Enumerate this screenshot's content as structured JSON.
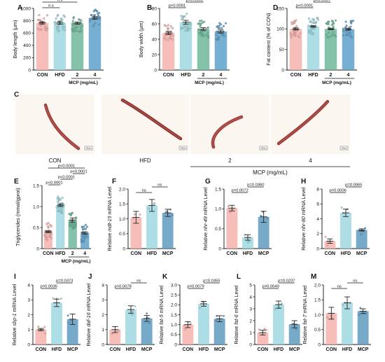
{
  "figure": {
    "colors": {
      "CON": "#f6b1ad",
      "HFD": "#9fd8e1",
      "MCP2": "#6fb99b",
      "MCP4": "#5ea1c9",
      "MCP": "#5f9ac0"
    },
    "photos": {
      "label": "C",
      "panels": [
        {
          "name": "CON",
          "worm_color": "#9b3d3a"
        },
        {
          "name": "HFD",
          "worm_color": "#8d3430"
        },
        {
          "name": "2",
          "worm_color": "#9f3f3b"
        },
        {
          "name": "4",
          "worm_color": "#9a3a36"
        }
      ],
      "group_label": "MCP (mg/mL)",
      "scalebar_text": "200μm"
    }
  },
  "chart_data": [
    {
      "panel": "A",
      "type": "bar",
      "categories": [
        "CON",
        "HFD",
        "2",
        "4"
      ],
      "values": [
        765,
        765,
        760,
        845
      ],
      "errors": [
        18,
        22,
        18,
        22
      ],
      "ylabel": "Body length (μm)",
      "ylim": [
        0,
        1000
      ],
      "yticks": [
        0,
        200,
        400,
        600,
        800,
        1000
      ],
      "group_label": "MCP (mg/mL)",
      "comparisons": [
        {
          "from": 0,
          "to": 1,
          "label": "n.s"
        },
        {
          "from": 0,
          "to": 2,
          "label": "n.s"
        },
        {
          "from": 0,
          "to": 3,
          "label": "p<0.0001"
        },
        {
          "from": 1,
          "to": 3,
          "label": "p<0.0001"
        }
      ]
    },
    {
      "panel": "B",
      "type": "bar",
      "categories": [
        "CON",
        "HFD",
        "2",
        "4"
      ],
      "values": [
        48,
        62,
        53,
        50
      ],
      "errors": [
        2,
        2.5,
        2,
        2
      ],
      "ylabel": "Body width (μm)",
      "ylim": [
        0,
        80
      ],
      "yticks": [
        0,
        20,
        40,
        60,
        80
      ],
      "group_label": "MCP (mg/mL)",
      "comparisons": [
        {
          "from": 0,
          "to": 1,
          "label": "p<0.0001"
        },
        {
          "from": 1,
          "to": 2,
          "label": "p<0.0001"
        },
        {
          "from": 1,
          "to": 3,
          "label": "p<0.0001"
        }
      ]
    },
    {
      "panel": "D",
      "type": "bar",
      "categories": [
        "CON",
        "HFD",
        "2",
        "4"
      ],
      "values": [
        100,
        106,
        100,
        99
      ],
      "errors": [
        2.5,
        2,
        2,
        2
      ],
      "ylabel": "Fat content (% of CON)",
      "ylim": [
        0,
        150
      ],
      "yticks": [
        0,
        50,
        100,
        150
      ],
      "group_label": "MCP (mg/mL)",
      "comparisons": [
        {
          "from": 0,
          "to": 1,
          "label": "p<0.0001"
        },
        {
          "from": 1,
          "to": 2,
          "label": "p=0.0007"
        },
        {
          "from": 1,
          "to": 3,
          "label": "p=0.0005"
        }
      ]
    },
    {
      "panel": "E",
      "type": "bar",
      "categories": [
        "CON",
        "HFD",
        "2",
        "4"
      ],
      "values": [
        0.4,
        1.03,
        0.68,
        0.37
      ],
      "errors": [
        0.02,
        0.03,
        0.05,
        0.03
      ],
      "ylabel": "Triglycerides (mmol/gprot)",
      "ylim": [
        0,
        1.5
      ],
      "yticks": [
        0,
        0.5,
        1.0,
        1.5
      ],
      "group_label": "MCP (mg/mL)",
      "comparisons": [
        {
          "from": 0,
          "to": 1,
          "label": "p<0.0001"
        },
        {
          "from": 1,
          "to": 2,
          "label": "p<0.0001"
        },
        {
          "from": 0,
          "to": 3,
          "label": "p<0.0001"
        },
        {
          "from": 2,
          "to": 3,
          "label": "p<0.0001"
        }
      ]
    },
    {
      "panel": "F",
      "type": "bar",
      "categories": [
        "CON",
        "HFD",
        "MCP"
      ],
      "values": [
        1.05,
        1.45,
        1.2
      ],
      "errors": [
        0.2,
        0.2,
        0.12
      ],
      "ylabel": "Relative mdt-15 mRNA Level",
      "ylim": [
        0,
        2.0
      ],
      "yticks": [
        0,
        0.5,
        1.0,
        1.5,
        2.0
      ],
      "comparisons": [
        {
          "from": 0,
          "to": 1,
          "label": "ns"
        },
        {
          "from": 1,
          "to": 2,
          "label": "ns"
        }
      ]
    },
    {
      "panel": "G",
      "type": "bar",
      "categories": [
        "CON",
        "HFD",
        "MCP"
      ],
      "values": [
        1.02,
        0.28,
        0.8
      ],
      "errors": [
        0.07,
        0.07,
        0.14
      ],
      "ylabel": "Relative nhr-49 mRNA Level",
      "ylim": [
        0,
        1.5
      ],
      "yticks": [
        0,
        0.5,
        1.0,
        1.5
      ],
      "comparisons": [
        {
          "from": 0,
          "to": 1,
          "label": "p=0.0072"
        },
        {
          "from": 1,
          "to": 2,
          "label": "p=0.0360"
        }
      ]
    },
    {
      "panel": "H",
      "type": "bar",
      "categories": [
        "CON",
        "HFD",
        "MCP"
      ],
      "values": [
        1.0,
        4.8,
        2.5
      ],
      "errors": [
        0.3,
        0.5,
        0.15
      ],
      "ylabel": "Relative nhr-80 mRNA Level",
      "ylim": [
        0,
        8
      ],
      "yticks": [
        0,
        2,
        4,
        6,
        8
      ],
      "comparisons": [
        {
          "from": 0,
          "to": 1,
          "label": "p=0.0006"
        },
        {
          "from": 1,
          "to": 2,
          "label": "p=0.0065"
        }
      ]
    },
    {
      "panel": "I",
      "type": "bar",
      "categories": [
        "CON",
        "HFD",
        "MCP"
      ],
      "values": [
        1.0,
        2.8,
        1.7
      ],
      "errors": [
        0.08,
        0.25,
        0.35
      ],
      "ylabel": "Relative sbp-1 mRNA Level",
      "ylim": [
        0,
        4
      ],
      "yticks": [
        0,
        1,
        2,
        3,
        4
      ],
      "comparisons": [
        {
          "from": 0,
          "to": 1,
          "label": "p=0.0036"
        },
        {
          "from": 1,
          "to": 2,
          "label": "p=0.0373"
        }
      ]
    },
    {
      "panel": "J",
      "type": "bar",
      "categories": [
        "CON",
        "HFD",
        "MCP"
      ],
      "values": [
        1.0,
        2.35,
        1.75
      ],
      "errors": [
        0.2,
        0.25,
        0.2
      ],
      "ylabel": "Relative daf-16 mRNA Level",
      "ylim": [
        0,
        4
      ],
      "yticks": [
        0,
        1,
        2,
        3,
        4
      ],
      "comparisons": [
        {
          "from": 0,
          "to": 1,
          "label": "p=0.0078"
        },
        {
          "from": 1,
          "to": 2,
          "label": "ns"
        }
      ]
    },
    {
      "panel": "K",
      "type": "bar",
      "categories": [
        "CON",
        "HFD",
        "MCP"
      ],
      "values": [
        1.0,
        2.05,
        1.3
      ],
      "errors": [
        0.15,
        0.12,
        0.15
      ],
      "ylabel": "Relative fat-5 mRNA Level",
      "ylim": [
        0,
        3.0
      ],
      "yticks": [
        0,
        0.5,
        1.0,
        1.5,
        2.0,
        2.5,
        3.0
      ],
      "comparisons": [
        {
          "from": 0,
          "to": 1,
          "label": "p=0.0079"
        },
        {
          "from": 1,
          "to": 2,
          "label": "p=0.0355"
        }
      ]
    },
    {
      "panel": "L",
      "type": "bar",
      "categories": [
        "CON",
        "HFD",
        "MCP"
      ],
      "values": [
        1.0,
        3.35,
        1.7
      ],
      "errors": [
        0.2,
        0.3,
        0.3
      ],
      "ylabel": "Relative fat-6 mRNA Level",
      "ylim": [
        0,
        5
      ],
      "yticks": [
        0,
        1,
        2,
        3,
        4,
        5
      ],
      "comparisons": [
        {
          "from": 0,
          "to": 1,
          "label": "p=0.0049"
        },
        {
          "from": 1,
          "to": 2,
          "label": "p=0.0237"
        }
      ]
    },
    {
      "panel": "M",
      "type": "bar",
      "categories": [
        "CON",
        "HFD",
        "MCP"
      ],
      "values": [
        1.05,
        1.4,
        1.12
      ],
      "errors": [
        0.2,
        0.2,
        0.08
      ],
      "ylabel": "Relative fat-7 mRNA Level",
      "ylim": [
        0,
        2.0
      ],
      "yticks": [
        0,
        0.5,
        1.0,
        1.5,
        2.0
      ],
      "comparisons": [
        {
          "from": 0,
          "to": 1,
          "label": "ns"
        },
        {
          "from": 1,
          "to": 2,
          "label": "ns"
        }
      ]
    }
  ]
}
